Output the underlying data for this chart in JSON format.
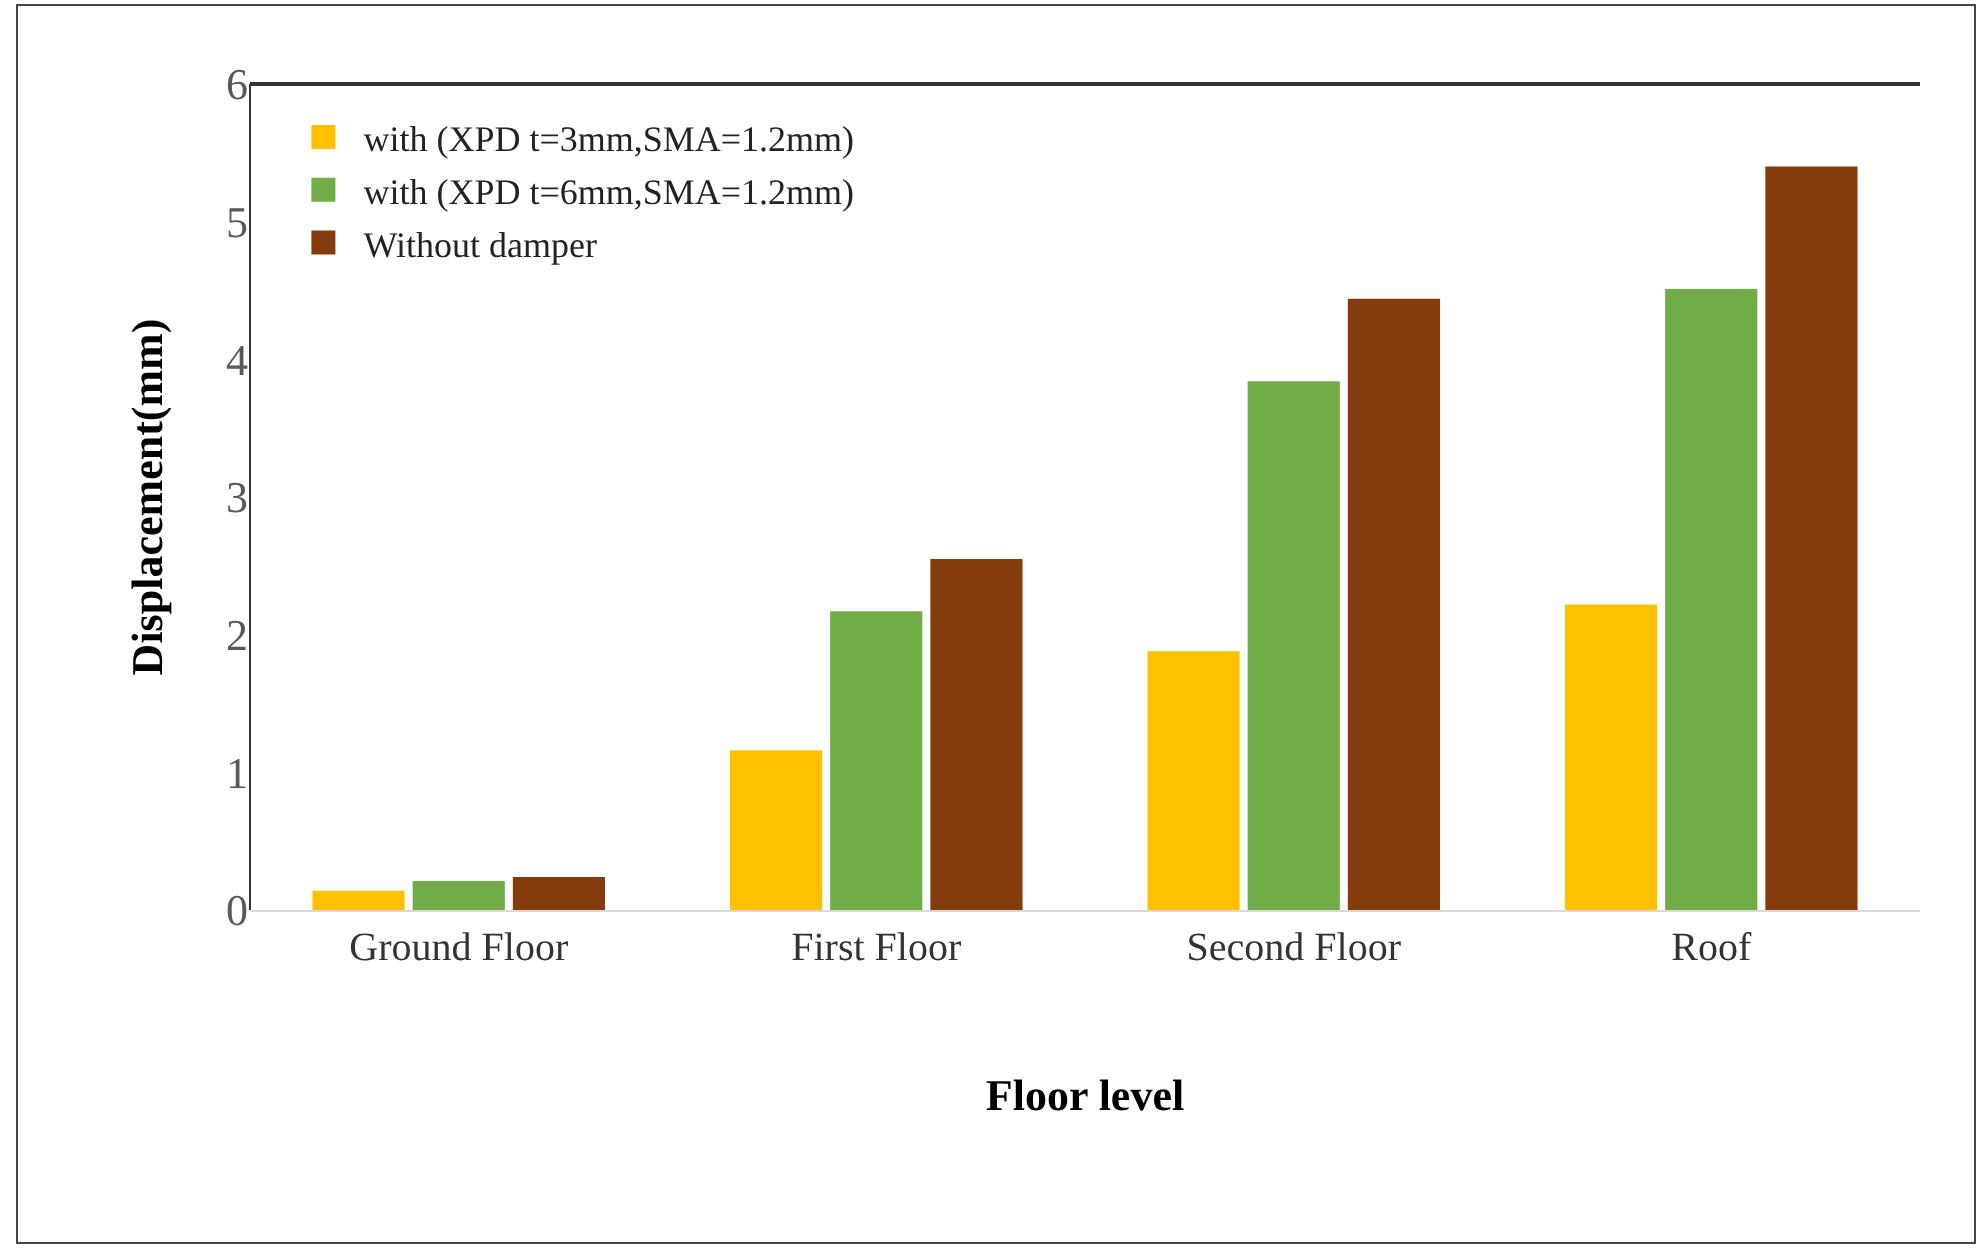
{
  "chart_data": {
    "type": "bar",
    "xlabel": "Floor level",
    "ylabel": "Displacement(mm)",
    "categories": [
      "Ground Floor",
      "First Floor",
      "Second Floor",
      "Roof"
    ],
    "series": [
      {
        "name": "with (XPD t=3mm,SMA=1.2mm)",
        "color": "#ffc000",
        "values": [
          0.14,
          1.16,
          1.88,
          2.22
        ]
      },
      {
        "name": "with (XPD t=6mm,SMA=1.2mm)",
        "color": "#70ad47",
        "values": [
          0.21,
          2.17,
          3.84,
          4.51
        ]
      },
      {
        "name": "Without damper",
        "color": "#843c0c",
        "values": [
          0.24,
          2.55,
          4.44,
          5.4
        ]
      }
    ],
    "ylim": [
      0,
      6
    ],
    "yticks": [
      0,
      1,
      2,
      3,
      4,
      5,
      6
    ],
    "grid": false,
    "legend": "top left"
  }
}
